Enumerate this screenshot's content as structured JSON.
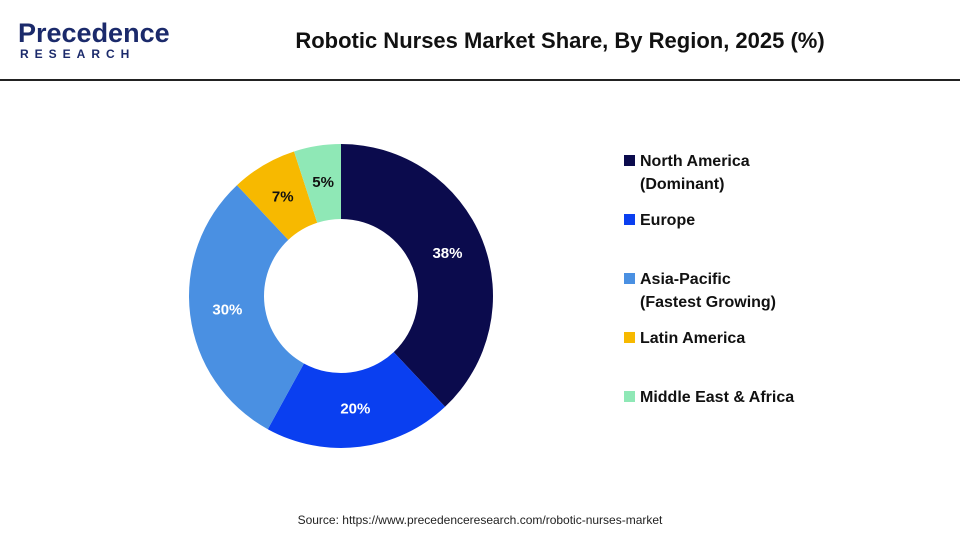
{
  "header": {
    "logo_name": "Precedence",
    "logo_sub": "RESEARCH"
  },
  "chart_data": {
    "type": "donut",
    "title": "Robotic Nurses Market Share, By Region, 2025 (%)",
    "categories": [
      "North America (Dominant)",
      "Europe",
      "Asia-Pacific (Fastest Growing)",
      "Latin America",
      "Middle East & Africa"
    ],
    "values": [
      38,
      20,
      30,
      7,
      5
    ],
    "value_labels": [
      "38%",
      "20%",
      "30%",
      "7%",
      "5%"
    ],
    "colors": [
      "#0b0b4d",
      "#0a3ff0",
      "#4a90e2",
      "#f7b900",
      "#8fe8b6"
    ],
    "legend": "right",
    "source": "Source: https://www.precedenceresearch.com/robotic-nurses-market"
  }
}
